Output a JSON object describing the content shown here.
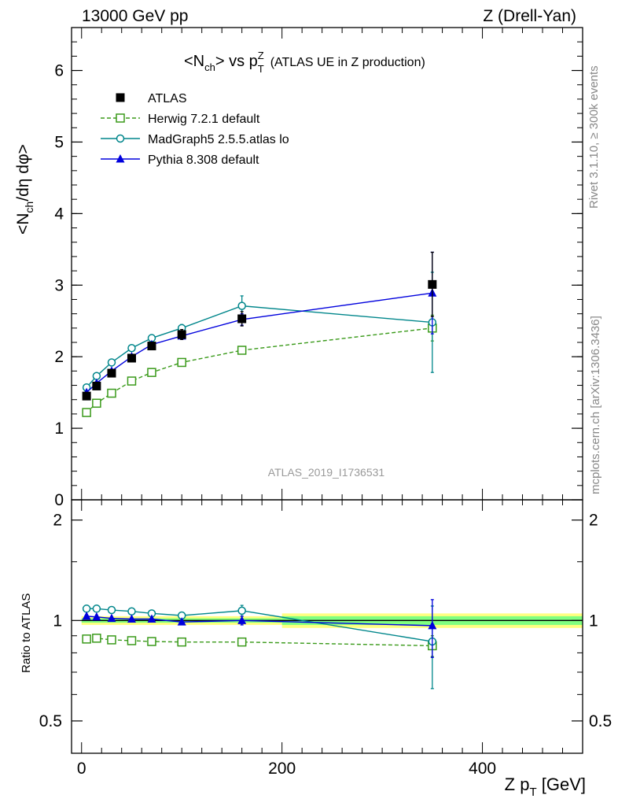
{
  "header": {
    "left": "13000 GeV pp",
    "right": "Z (Drell-Yan)"
  },
  "side_text": {
    "rivet": "Rivet 3.1.10, ≥ 300k events",
    "mcplots": "mcplots.cern.ch [arXiv:1306.3436]"
  },
  "watermark": "ATLAS_2019_I1736531",
  "colors": {
    "ATLAS": "#000000",
    "Herwig": "#3a9a1a",
    "MadGraph": "#00868b",
    "Pythia": "#0000dd",
    "band_outer": "#ffff80",
    "band_inner": "#80ff80"
  },
  "chart_data": [
    {
      "type": "line",
      "title": "<Nch> vs pT^Z (ATLAS UE in Z production)",
      "title_parts": {
        "main_a": "<N",
        "sub_a": "ch",
        "main_b": "> vs p",
        "sub_b": "T",
        "sup_b": "Z",
        "rest": "(ATLAS UE in Z production)"
      },
      "ylabel": "<Nch/dη dφ>",
      "ylabel_parts": {
        "a": "<N",
        "sub": "ch",
        "b": "/dη dφ>"
      },
      "xlim": [
        -10,
        500
      ],
      "ylim": [
        0,
        6.6
      ],
      "yticks": [
        0,
        1,
        2,
        3,
        4,
        5,
        6
      ],
      "x": [
        5,
        15,
        30,
        50,
        70,
        100,
        160,
        350
      ],
      "series": [
        {
          "name": "ATLAS",
          "marker": "filled-square",
          "values": [
            1.45,
            1.59,
            1.77,
            1.98,
            2.15,
            2.31,
            2.53,
            3.01
          ],
          "errors": [
            0.03,
            0.03,
            0.04,
            0.04,
            0.05,
            0.07,
            0.1,
            0.45
          ]
        },
        {
          "name": "Herwig 7.2.1 default",
          "marker": "open-square",
          "dashed": true,
          "values": [
            1.22,
            1.35,
            1.49,
            1.66,
            1.78,
            1.92,
            2.09,
            2.4
          ],
          "errors": [
            0.01,
            0.01,
            0.01,
            0.02,
            0.02,
            0.03,
            0.05,
            0.18
          ]
        },
        {
          "name": "MadGraph5 2.5.5.atlas lo",
          "marker": "open-circle",
          "values": [
            1.57,
            1.73,
            1.92,
            2.12,
            2.26,
            2.4,
            2.71,
            2.48
          ],
          "errors": [
            0.01,
            0.01,
            0.02,
            0.02,
            0.03,
            0.05,
            0.14,
            0.7
          ]
        },
        {
          "name": "Pythia 8.308 default",
          "marker": "filled-triangle",
          "values": [
            1.5,
            1.63,
            1.8,
            2.0,
            2.17,
            2.29,
            2.52,
            2.89
          ],
          "errors": [
            0.01,
            0.01,
            0.02,
            0.02,
            0.03,
            0.04,
            0.08,
            0.57
          ]
        }
      ]
    },
    {
      "type": "line",
      "ylabel": "Ratio to ATLAS",
      "xlabel": "Z pT [GeV]",
      "xlabel_parts": {
        "a": "Z p",
        "sub": "T",
        "b": " [GeV]"
      },
      "xlim": [
        -10,
        500
      ],
      "ylim": [
        0.4,
        2.3
      ],
      "yticks": [
        0.5,
        1,
        2
      ],
      "xticks": [
        0,
        200,
        400
      ],
      "x": [
        5,
        15,
        30,
        50,
        70,
        100,
        160,
        350
      ],
      "band": {
        "x_edges": [
          0,
          200,
          500
        ],
        "outer": [
          0.03,
          0.05
        ],
        "inner": [
          0.015,
          0.03
        ]
      },
      "series": [
        {
          "name": "Herwig 7.2.1 default",
          "marker": "open-square",
          "dashed": true,
          "values": [
            0.88,
            0.885,
            0.875,
            0.87,
            0.865,
            0.862,
            0.862,
            0.84
          ],
          "errors": [
            0.01,
            0.01,
            0.01,
            0.01,
            0.01,
            0.01,
            0.02,
            0.06
          ]
        },
        {
          "name": "MadGraph5 2.5.5.atlas lo",
          "marker": "open-circle",
          "values": [
            1.085,
            1.085,
            1.075,
            1.065,
            1.05,
            1.035,
            1.07,
            0.865
          ],
          "errors": [
            0.01,
            0.01,
            0.01,
            0.01,
            0.01,
            0.02,
            0.04,
            0.24
          ]
        },
        {
          "name": "Pythia 8.308 default",
          "marker": "filled-triangle",
          "values": [
            1.03,
            1.025,
            1.015,
            1.01,
            1.01,
            0.99,
            1.0,
            0.965
          ],
          "errors": [
            0.01,
            0.01,
            0.01,
            0.01,
            0.01,
            0.01,
            0.03,
            0.19
          ]
        }
      ]
    }
  ]
}
